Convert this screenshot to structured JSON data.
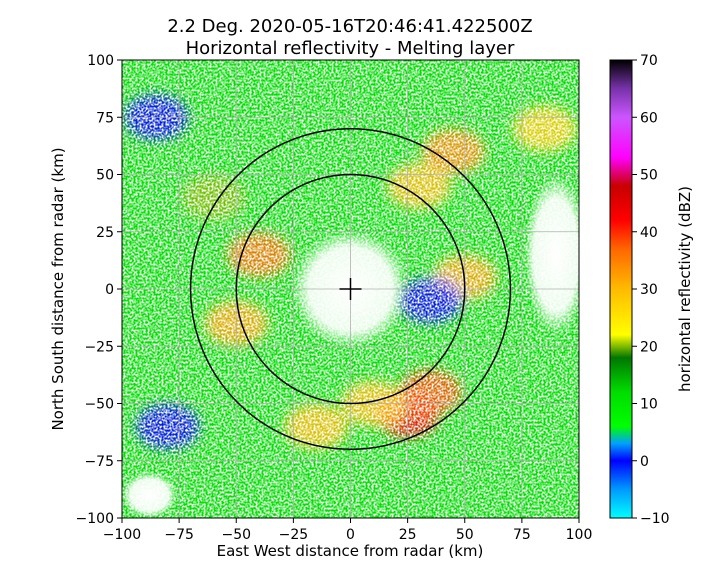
{
  "chart_data": {
    "type": "heatmap",
    "title_line1": "2.2 Deg. 2020-05-16T20:46:41.422500Z",
    "title_line2": "Horizontal reflectivity - Melting layer",
    "xlabel": "East West distance from radar (km)",
    "ylabel": "North South distance from radar (km)",
    "xlim": [
      -100,
      100
    ],
    "ylim": [
      -100,
      100
    ],
    "x_ticks": [
      -100,
      -75,
      -50,
      -25,
      0,
      25,
      50,
      75,
      100
    ],
    "y_ticks": [
      -100,
      -75,
      -50,
      -25,
      0,
      25,
      50,
      75,
      100
    ],
    "grid": true,
    "colorbar": {
      "label": "horizontal reflectivity (dBZ)",
      "range": [
        -10,
        70
      ],
      "ticks": [
        -10,
        0,
        10,
        20,
        30,
        40,
        50,
        60,
        70
      ],
      "colormap_stops": [
        {
          "value": -10,
          "color": "#00ffff"
        },
        {
          "value": -5,
          "color": "#0099ff"
        },
        {
          "value": 0,
          "color": "#0000ff"
        },
        {
          "value": 3,
          "color": "#00a0ff"
        },
        {
          "value": 6,
          "color": "#00ff00"
        },
        {
          "value": 12,
          "color": "#00dd00"
        },
        {
          "value": 18,
          "color": "#007700"
        },
        {
          "value": 22,
          "color": "#ffff00"
        },
        {
          "value": 30,
          "color": "#ffbb00"
        },
        {
          "value": 37,
          "color": "#ff6600"
        },
        {
          "value": 42,
          "color": "#ff0000"
        },
        {
          "value": 48,
          "color": "#c80000"
        },
        {
          "value": 53,
          "color": "#ff00ff"
        },
        {
          "value": 60,
          "color": "#cc55ff"
        },
        {
          "value": 65,
          "color": "#7733aa"
        },
        {
          "value": 70,
          "color": "#000000"
        }
      ]
    },
    "range_rings_km": [
      50,
      70
    ],
    "radar_location": [
      0,
      0
    ],
    "reflectivity_features": [
      {
        "x": 25,
        "y": -55,
        "dbz": 42
      },
      {
        "x": 35,
        "y": -45,
        "dbz": 38
      },
      {
        "x": 10,
        "y": -50,
        "dbz": 30
      },
      {
        "x": -15,
        "y": -60,
        "dbz": 30
      },
      {
        "x": 45,
        "y": 60,
        "dbz": 34
      },
      {
        "x": 30,
        "y": 45,
        "dbz": 30
      },
      {
        "x": -40,
        "y": 15,
        "dbz": 36
      },
      {
        "x": -50,
        "y": -15,
        "dbz": 32
      },
      {
        "x": 50,
        "y": 5,
        "dbz": 32
      },
      {
        "x": -60,
        "y": 40,
        "dbz": 20
      },
      {
        "x": 85,
        "y": 70,
        "dbz": 28
      }
    ],
    "low_reflectivity_features": [
      {
        "x": 35,
        "y": -5,
        "dbz": 0
      },
      {
        "x": -80,
        "y": -60,
        "dbz": 0
      },
      {
        "x": -85,
        "y": 75,
        "dbz": 0
      }
    ]
  }
}
